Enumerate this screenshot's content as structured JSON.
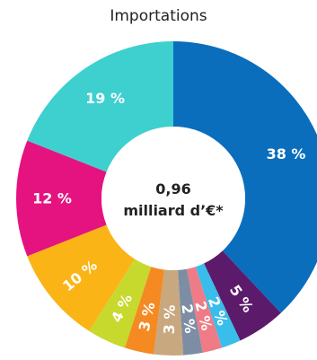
{
  "chart_data": {
    "type": "pie",
    "title": "Importations",
    "center_value": "0,96",
    "center_unit": "milliard d’€*",
    "slices": [
      {
        "label": "38 %",
        "value": 38,
        "color": "#0a6ebd"
      },
      {
        "label": "5 %",
        "value": 5,
        "color": "#5c1a6b"
      },
      {
        "label": "2 %",
        "value": 2,
        "color": "#39bdea"
      },
      {
        "label": "2 %",
        "value": 2,
        "color": "#ef7b86"
      },
      {
        "label": "2 %",
        "value": 2,
        "color": "#7d8ea4"
      },
      {
        "label": "3 %",
        "value": 3,
        "color": "#c8a87e"
      },
      {
        "label": "3 %",
        "value": 3,
        "color": "#f58a23"
      },
      {
        "label": "4 %",
        "value": 4,
        "color": "#c6d92c"
      },
      {
        "label": "10 %",
        "value": 10,
        "color": "#fbb416"
      },
      {
        "label": "12 %",
        "value": 12,
        "color": "#e5137f"
      },
      {
        "label": "19 %",
        "value": 19,
        "color": "#3ecfcf"
      }
    ]
  }
}
